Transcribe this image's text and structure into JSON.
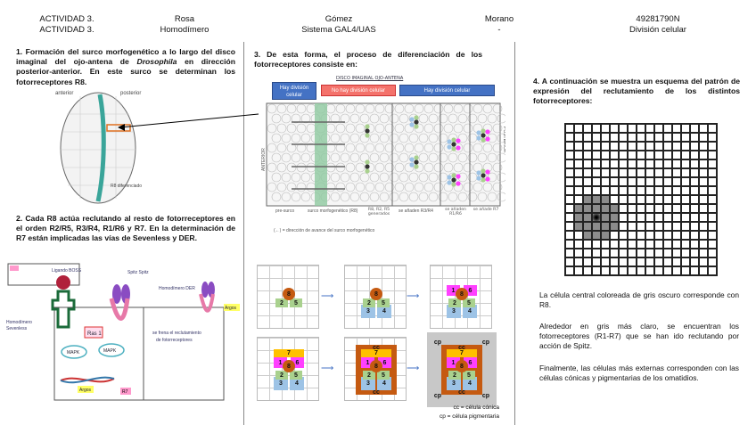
{
  "header": {
    "row1": [
      "ACTIVIDAD 3.",
      "Rosa",
      "Gómez",
      "Morano",
      "49281790N"
    ],
    "row2": [
      "ACTIVIDAD 3.",
      "Homodímero",
      "Sistema GAL4/UAS",
      "-",
      "División celular"
    ]
  },
  "section1": {
    "text_before": "1. Formación del surco morfogenético a lo largo del disco imaginal del ojo-antena de ",
    "italic": "Drosophila",
    "text_after": " en dirección posterior-anterior. En este surco se determinan los fotorreceptores R8."
  },
  "section2": {
    "text": "2. Cada R8 actúa reclutando al resto de fotorreceptores en el orden R2/R5, R3/R4, R1/R6 y R7. En la determinación de R7 están implicadas las vías de Sevenless y DER."
  },
  "section3": {
    "text": "3. De esta forma, el proceso de diferenciación de los fotorreceptores consiste en:",
    "labels": [
      "Hay división celular",
      "No hay división celular",
      "Hay división celular"
    ],
    "colors": {
      "blue": "#4472c4",
      "red": "#f4726b",
      "r8": "#c55a11",
      "green": "#a9d18e",
      "lightblue": "#9dc3e6",
      "magenta": "#ff40ff",
      "yellow": "#ffc000",
      "cc": "#c55a11",
      "cp": "#c8c8c8"
    },
    "legend": [
      "cc = célula cónica",
      "cp = célula pigmentaria"
    ]
  },
  "section4": {
    "text": "4. A continuación se muestra un esquema del patrón de expresión del reclutamiento de los distintos fotorreceptores:",
    "paragraphs": [
      "La célula central coloreada de gris oscuro corresponde con R8.",
      "Alrededor en gris más claro, se encuentran los fotorreceptores (R1-R7) que se han ido reclutando por acción de Spitz.",
      "Finalmente, las células más externas corresponden con las células cónicas y pigmentarias de los omatidios."
    ]
  },
  "figure_handwriting": [
    "anterior",
    "posterior",
    "surco morfogenético",
    "R8 diferenciado",
    "Ligando BOSS",
    "Spitz",
    "Spitz",
    "Homodímero Sevenless",
    "Homodímero DER",
    "Argos",
    "Ras 1",
    "MAPK",
    "se frena el reclutamiento de fotorreceptores",
    "R7",
    "R8",
    "pre-surco",
    "R8, R2, R5 generados",
    "se añaden R3/R4",
    "se añaden R1/R6",
    "se añade R7",
    "disco imaginal ojo-antena",
    "(←) = dirección de avance del surco morfogenético"
  ]
}
